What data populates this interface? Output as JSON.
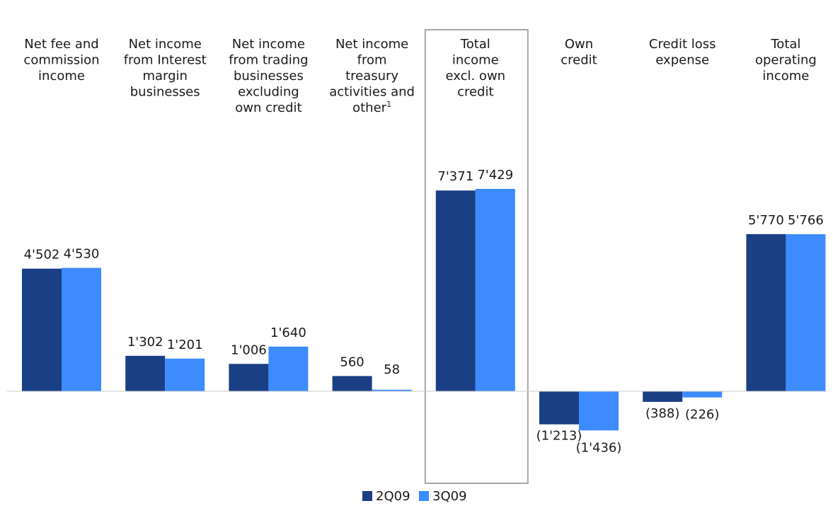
{
  "chart_data": {
    "type": "bar",
    "categories": [
      [
        "Net fee and",
        "commission",
        "income"
      ],
      [
        "Net income",
        "from Interest",
        "margin",
        "businesses"
      ],
      [
        "Net income",
        "from trading",
        "businesses",
        "excluding",
        "own credit"
      ],
      [
        "Net income",
        "from",
        "treasury",
        "activities and",
        "other"
      ],
      [
        "Total",
        "income",
        "excl. own",
        "credit"
      ],
      [
        "Own",
        "credit"
      ],
      [
        "Credit loss",
        "expense"
      ],
      [
        "Total",
        "operating",
        "income"
      ]
    ],
    "footnote_superscript": "1",
    "series": [
      {
        "name": "2Q09",
        "color": "#1b3f85",
        "values": [
          4502,
          1302,
          1006,
          560,
          7371,
          -1213,
          -388,
          5770
        ],
        "labels": [
          "4'502",
          "1'302",
          "1'006",
          "560",
          "7'371",
          "(1'213)",
          "(388)",
          "5'770"
        ]
      },
      {
        "name": "3Q09",
        "color": "#3d8bff",
        "values": [
          4530,
          1201,
          1640,
          58,
          7429,
          -1436,
          -226,
          5766
        ],
        "labels": [
          "4'530",
          "1'201",
          "1'640",
          "58",
          "7'429",
          "(1'436)",
          "(226)",
          "5'766"
        ]
      }
    ],
    "highlighted_category_index": 4,
    "legend_position": "bottom-center",
    "grid": false
  }
}
